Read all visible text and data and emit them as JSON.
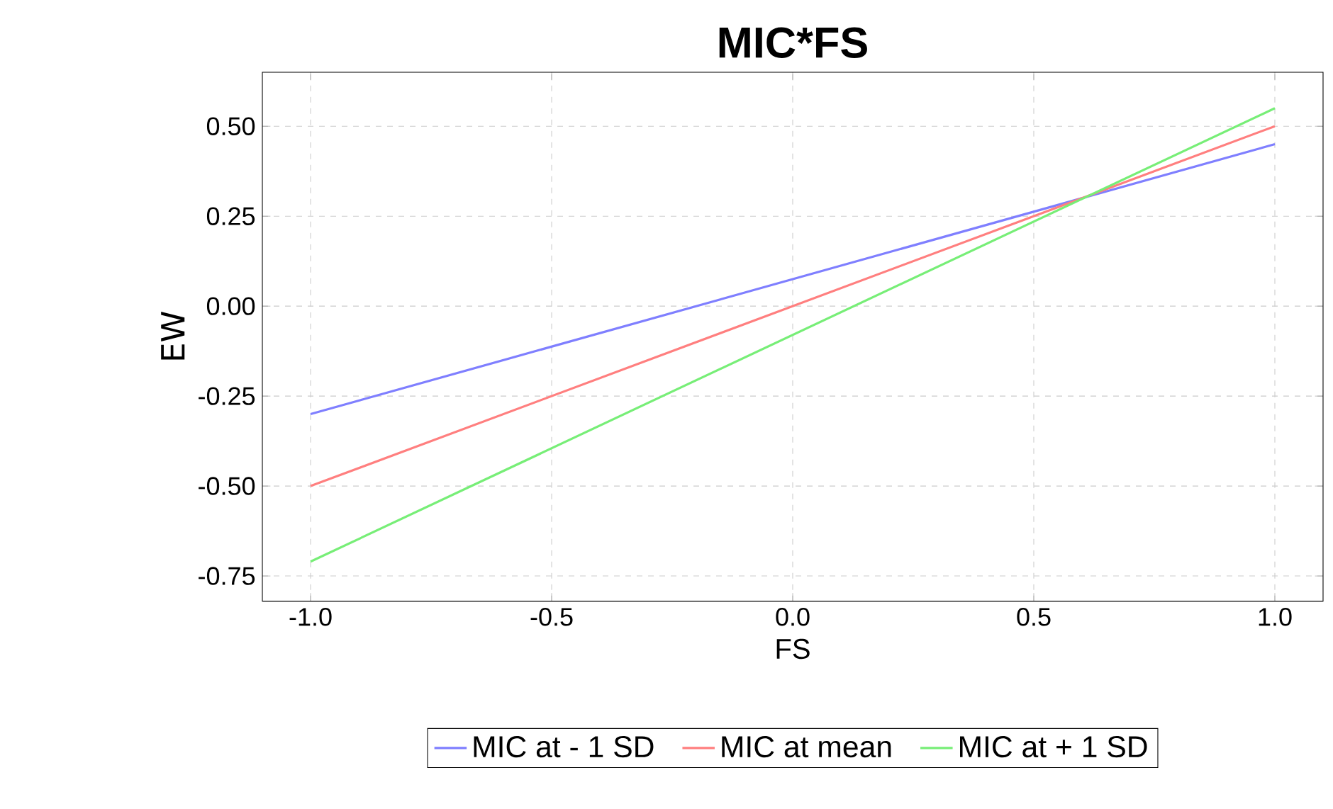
{
  "chart_data": {
    "type": "line",
    "title": "MIC*FS",
    "xlabel": "FS",
    "ylabel": "EW",
    "x": [
      -1.0,
      1.0
    ],
    "series": [
      {
        "name": "MIC at - 1 SD",
        "color": "#7f7fff",
        "values": [
          -0.3,
          0.45
        ]
      },
      {
        "name": "MIC at mean",
        "color": "#ff7f7f",
        "values": [
          -0.5,
          0.5
        ]
      },
      {
        "name": "MIC at + 1 SD",
        "color": "#77ee77",
        "values": [
          -0.71,
          0.55
        ]
      }
    ],
    "xlim": [
      -1.1,
      1.1
    ],
    "ylim": [
      -0.82,
      0.65
    ],
    "xticks": [
      {
        "value": -1.0,
        "label": "-1.0"
      },
      {
        "value": -0.5,
        "label": "-0.5"
      },
      {
        "value": 0.0,
        "label": "0.0"
      },
      {
        "value": 0.5,
        "label": "0.5"
      },
      {
        "value": 1.0,
        "label": "1.0"
      }
    ],
    "yticks": [
      {
        "value": -0.75,
        "label": "-0.75"
      },
      {
        "value": -0.5,
        "label": "-0.50"
      },
      {
        "value": -0.25,
        "label": "-0.25"
      },
      {
        "value": 0.0,
        "label": "0.00"
      },
      {
        "value": 0.25,
        "label": "0.25"
      },
      {
        "value": 0.5,
        "label": "0.50"
      }
    ],
    "grid": true,
    "legend": "bottom",
    "marker": "none",
    "line_style": "solid"
  }
}
